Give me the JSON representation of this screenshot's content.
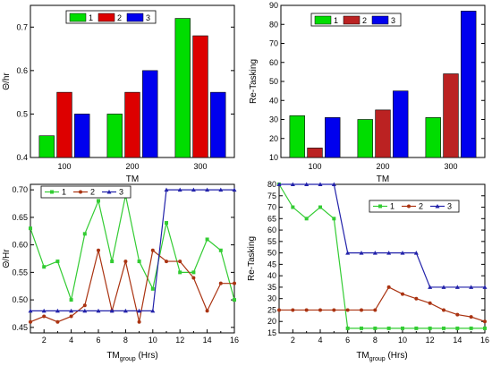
{
  "chart_data": [
    {
      "type": "bar",
      "categories": [
        "100",
        "200",
        "300"
      ],
      "series": [
        {
          "name": "1",
          "values": [
            0.45,
            0.5,
            0.72
          ]
        },
        {
          "name": "2",
          "values": [
            0.55,
            0.55,
            0.68
          ]
        },
        {
          "name": "3",
          "values": [
            0.5,
            0.6,
            0.55
          ]
        }
      ],
      "xlabel": "TM",
      "ylabel": "Θ/hr",
      "ylim": [
        0.4,
        0.75
      ],
      "yticks": [
        "0.4",
        "0.5",
        "0.6",
        "0.7"
      ],
      "legend": "top-center",
      "colors": [
        "#00dd00",
        "#dd0000",
        "#0000ee"
      ]
    },
    {
      "type": "bar",
      "categories": [
        "100",
        "200",
        "300"
      ],
      "series": [
        {
          "name": "1",
          "values": [
            32,
            30,
            31
          ]
        },
        {
          "name": "2",
          "values": [
            15,
            35,
            54
          ]
        },
        {
          "name": "3",
          "values": [
            31,
            45,
            87
          ]
        }
      ],
      "xlabel": "TM",
      "ylabel": "Re-Tasking",
      "ylim": [
        10,
        90
      ],
      "yticks": [
        "10",
        "20",
        "30",
        "40",
        "50",
        "60",
        "70",
        "80",
        "90"
      ],
      "legend": "top-left",
      "colors": [
        "#00dd00",
        "#bb2222",
        "#0000ee"
      ]
    },
    {
      "type": "line",
      "x": [
        1,
        2,
        3,
        4,
        5,
        6,
        7,
        8,
        9,
        10,
        11,
        12,
        13,
        14,
        15,
        16
      ],
      "series": [
        {
          "name": "1",
          "values": [
            0.63,
            0.56,
            0.57,
            0.5,
            0.62,
            0.68,
            0.57,
            0.69,
            0.57,
            0.52,
            0.64,
            0.55,
            0.55,
            0.61,
            0.59,
            0.5
          ]
        },
        {
          "name": "2",
          "values": [
            0.46,
            0.47,
            0.46,
            0.47,
            0.49,
            0.59,
            0.48,
            0.57,
            0.46,
            0.59,
            0.57,
            0.57,
            0.54,
            0.48,
            0.53,
            0.53
          ]
        },
        {
          "name": "3",
          "values": [
            0.48,
            0.48,
            0.48,
            0.48,
            0.48,
            0.48,
            0.48,
            0.48,
            0.48,
            0.48,
            0.7,
            0.7,
            0.7,
            0.7,
            0.7,
            0.7
          ]
        }
      ],
      "xlabel": "TM",
      "xlabel_sub": "group",
      "xlabel_tail": " (Hrs)",
      "ylabel": "Θ/Hr",
      "xlim": [
        1,
        16
      ],
      "ylim": [
        0.44,
        0.71
      ],
      "xticks": [
        "2",
        "4",
        "6",
        "8",
        "10",
        "12",
        "14",
        "16"
      ],
      "yticks": [
        "0.45",
        "0.50",
        "0.55",
        "0.60",
        "0.65",
        "0.70"
      ],
      "legend": "top-left",
      "colors": [
        "#33cc33",
        "#aa3311",
        "#2222aa"
      ]
    },
    {
      "type": "line",
      "x": [
        1,
        2,
        3,
        4,
        5,
        6,
        7,
        8,
        9,
        10,
        11,
        12,
        13,
        14,
        15,
        16
      ],
      "series": [
        {
          "name": "1",
          "values": [
            80,
            70,
            65,
            70,
            65,
            17,
            17,
            17,
            17,
            17,
            17,
            17,
            17,
            17,
            17,
            17
          ]
        },
        {
          "name": "2",
          "values": [
            25,
            25,
            25,
            25,
            25,
            25,
            25,
            25,
            35,
            32,
            30,
            28,
            25,
            23,
            22,
            20
          ]
        },
        {
          "name": "3",
          "values": [
            80,
            80,
            80,
            80,
            80,
            50,
            50,
            50,
            50,
            50,
            50,
            35,
            35,
            35,
            35,
            35
          ]
        }
      ],
      "xlabel": "TM",
      "xlabel_sub": "group",
      "xlabel_tail": " (Hrs)",
      "ylabel": "Re-Tasking",
      "xlim": [
        1,
        16
      ],
      "ylim": [
        15,
        80
      ],
      "xticks": [
        "2",
        "4",
        "6",
        "8",
        "10",
        "12",
        "14",
        "16"
      ],
      "yticks": [
        "15",
        "20",
        "25",
        "30",
        "35",
        "40",
        "45",
        "50",
        "55",
        "60",
        "65",
        "70",
        "75",
        "80"
      ],
      "legend": "top-right",
      "colors": [
        "#33cc33",
        "#aa3311",
        "#2222aa"
      ]
    }
  ]
}
